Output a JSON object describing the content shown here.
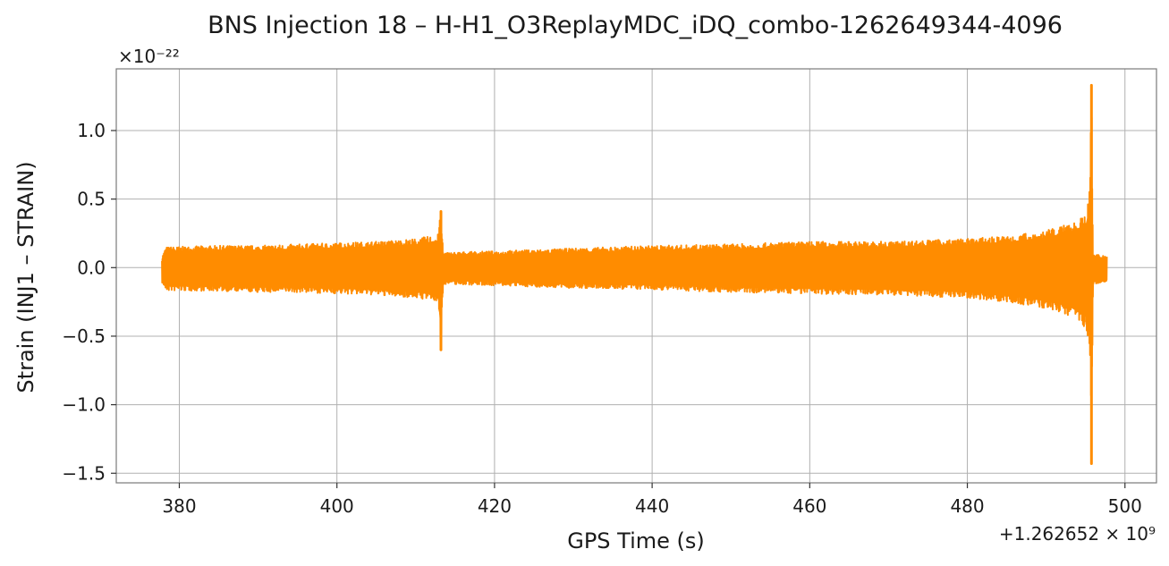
{
  "chart_data": {
    "type": "line",
    "title": "BNS Injection 18 – H-H1_O3ReplayMDC_iDQ_combo-1262649344-4096",
    "xlabel": "GPS Time (s)",
    "ylabel": "Strain (INJ1 – STRAIN)",
    "x_offset_label": "+1.262652 × 10⁹",
    "y_scale_label": "×10⁻²²",
    "xlim": [
      372,
      504
    ],
    "ylim": [
      -1.57,
      1.45
    ],
    "x_ticks": [
      {
        "value": 380,
        "label": "380"
      },
      {
        "value": 400,
        "label": "400"
      },
      {
        "value": 420,
        "label": "420"
      },
      {
        "value": 440,
        "label": "440"
      },
      {
        "value": 460,
        "label": "460"
      },
      {
        "value": 480,
        "label": "480"
      },
      {
        "value": 500,
        "label": "500"
      }
    ],
    "y_ticks": [
      {
        "value": 1.0,
        "label": "1.0"
      },
      {
        "value": 0.5,
        "label": "0.5"
      },
      {
        "value": 0.0,
        "label": "0.0"
      },
      {
        "value": -0.5,
        "label": "−0.5"
      },
      {
        "value": -1.0,
        "label": "−1.0"
      },
      {
        "value": -1.5,
        "label": "−1.5"
      }
    ],
    "grid": true,
    "series": [
      {
        "color": "#ff8c00",
        "envelope": [
          {
            "x": 377.8,
            "top": 0.08,
            "bottom": -0.11
          },
          {
            "x": 378.3,
            "top": 0.15,
            "bottom": -0.17
          },
          {
            "x": 385,
            "top": 0.16,
            "bottom": -0.17
          },
          {
            "x": 390,
            "top": 0.16,
            "bottom": -0.18
          },
          {
            "x": 395,
            "top": 0.17,
            "bottom": -0.18
          },
          {
            "x": 400,
            "top": 0.18,
            "bottom": -0.19
          },
          {
            "x": 405,
            "top": 0.19,
            "bottom": -0.2
          },
          {
            "x": 410,
            "top": 0.21,
            "bottom": -0.22
          },
          {
            "x": 412.8,
            "top": 0.24,
            "bottom": -0.25
          },
          {
            "x": 413.2,
            "top": 0.41,
            "bottom": -0.6
          },
          {
            "x": 413.5,
            "top": 0.11,
            "bottom": -0.12
          },
          {
            "x": 420,
            "top": 0.12,
            "bottom": -0.13
          },
          {
            "x": 430,
            "top": 0.14,
            "bottom": -0.15
          },
          {
            "x": 440,
            "top": 0.16,
            "bottom": -0.16
          },
          {
            "x": 450,
            "top": 0.17,
            "bottom": -0.18
          },
          {
            "x": 460,
            "top": 0.19,
            "bottom": -0.19
          },
          {
            "x": 470,
            "top": 0.19,
            "bottom": -0.2
          },
          {
            "x": 480,
            "top": 0.21,
            "bottom": -0.22
          },
          {
            "x": 485,
            "top": 0.23,
            "bottom": -0.25
          },
          {
            "x": 490,
            "top": 0.27,
            "bottom": -0.3
          },
          {
            "x": 493,
            "top": 0.32,
            "bottom": -0.35
          },
          {
            "x": 495,
            "top": 0.38,
            "bottom": -0.44
          },
          {
            "x": 495.55,
            "top": 0.55,
            "bottom": -0.55
          },
          {
            "x": 495.75,
            "top": 1.33,
            "bottom": -1.43
          },
          {
            "x": 495.95,
            "top": 0.1,
            "bottom": -0.12
          },
          {
            "x": 497.7,
            "top": 0.09,
            "bottom": -0.1
          }
        ]
      }
    ]
  }
}
